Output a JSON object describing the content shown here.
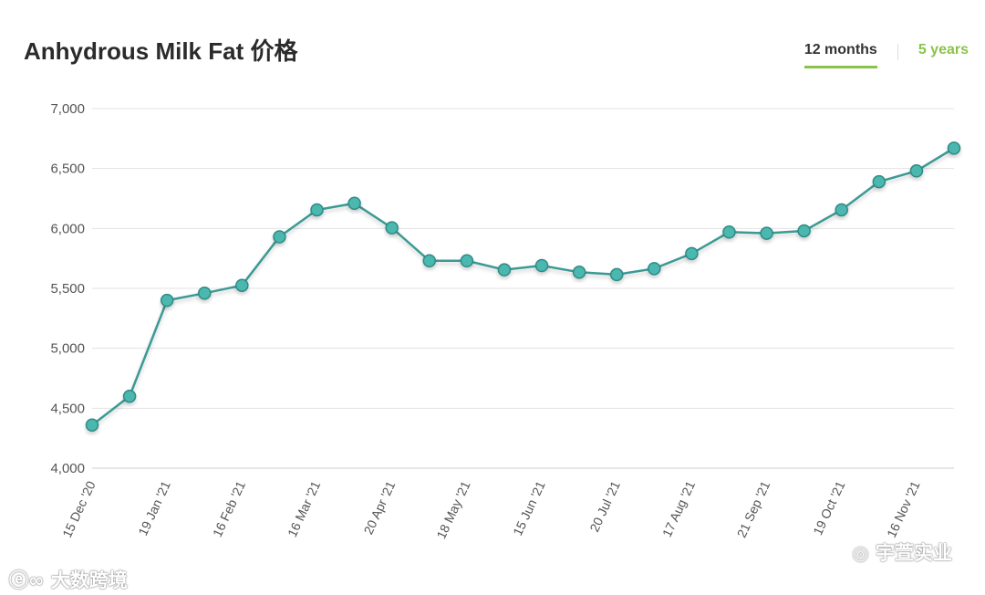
{
  "chart_data": {
    "type": "line",
    "title": "Anhydrous Milk Fat 价格",
    "xlabel": "",
    "ylabel": "",
    "ylim": [
      4000,
      7000
    ],
    "y_ticks": [
      "4,000",
      "4,500",
      "5,000",
      "5,500",
      "6,000",
      "6,500",
      "7,000"
    ],
    "y_tick_values": [
      4000,
      4500,
      5000,
      5500,
      6000,
      6500,
      7000
    ],
    "x_tick_labels": [
      "15 Dec '20",
      "19 Jan '21",
      "16 Feb '21",
      "16 Mar '21",
      "20 Apr '21",
      "18 May '21",
      "15 Jun '21",
      "20 Jul '21",
      "17 Aug '21",
      "21 Sep '21",
      "19 Oct '21",
      "16 Nov '21"
    ],
    "series": [
      {
        "values": [
          4360,
          4600,
          5400,
          5460,
          5525,
          5930,
          6155,
          6210,
          6005,
          5730,
          5730,
          5655,
          5690,
          5635,
          5615,
          5665,
          5790,
          5970,
          5960,
          5980,
          6155,
          6390,
          6480,
          6670
        ]
      }
    ],
    "grid": true,
    "legend": "none",
    "colors": {
      "line": "#3a9a94",
      "marker": "#4cb8b0",
      "marker_stroke": "#2e8a85",
      "grid": "#e3e3e3"
    }
  },
  "tabs": [
    {
      "label": "12 months",
      "active": true
    },
    {
      "label": "5 years",
      "active": false
    }
  ],
  "watermarks": {
    "left": "大数跨境",
    "right": "宇萱实业"
  }
}
